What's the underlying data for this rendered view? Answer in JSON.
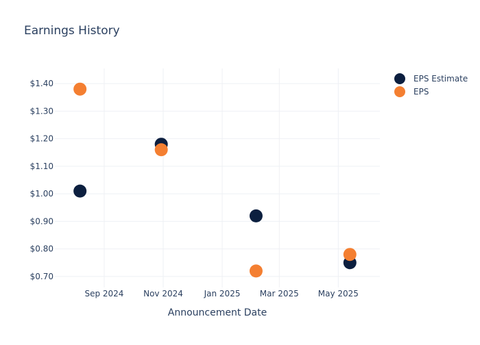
{
  "chart_data": {
    "type": "scatter",
    "title": "Earnings History",
    "xlabel": "Announcement Date",
    "ylabel": "",
    "x_ticks": [
      {
        "date": "2024-09-01",
        "label": "Sep 2024"
      },
      {
        "date": "2024-11-01",
        "label": "Nov 2024"
      },
      {
        "date": "2025-01-01",
        "label": "Jan 2025"
      },
      {
        "date": "2025-03-01",
        "label": "Mar 2025"
      },
      {
        "date": "2025-05-01",
        "label": "May 2025"
      }
    ],
    "y_ticks": [
      {
        "value": 0.7,
        "label": "$0.70"
      },
      {
        "value": 0.8,
        "label": "$0.80"
      },
      {
        "value": 0.9,
        "label": "$0.90"
      },
      {
        "value": 1.0,
        "label": "$1.00"
      },
      {
        "value": 1.1,
        "label": "$1.10"
      },
      {
        "value": 1.2,
        "label": "$1.20"
      },
      {
        "value": 1.3,
        "label": "$1.30"
      },
      {
        "value": 1.4,
        "label": "$1.40"
      }
    ],
    "xlim": [
      "2024-07-12",
      "2025-06-13"
    ],
    "ylim": [
      0.66,
      1.455
    ],
    "grid": true,
    "legend_position": "top-right",
    "series": [
      {
        "name": "EPS Estimate",
        "color": "#0c1f3f",
        "points": [
          {
            "x": "2024-08-07",
            "y": 1.01
          },
          {
            "x": "2024-10-30",
            "y": 1.18
          },
          {
            "x": "2025-02-05",
            "y": 0.92
          },
          {
            "x": "2025-05-13",
            "y": 0.75
          }
        ]
      },
      {
        "name": "EPS",
        "color": "#f47f31",
        "points": [
          {
            "x": "2024-08-07",
            "y": 1.38
          },
          {
            "x": "2024-10-30",
            "y": 1.16
          },
          {
            "x": "2025-02-05",
            "y": 0.72
          },
          {
            "x": "2025-05-13",
            "y": 0.78
          }
        ]
      }
    ]
  }
}
